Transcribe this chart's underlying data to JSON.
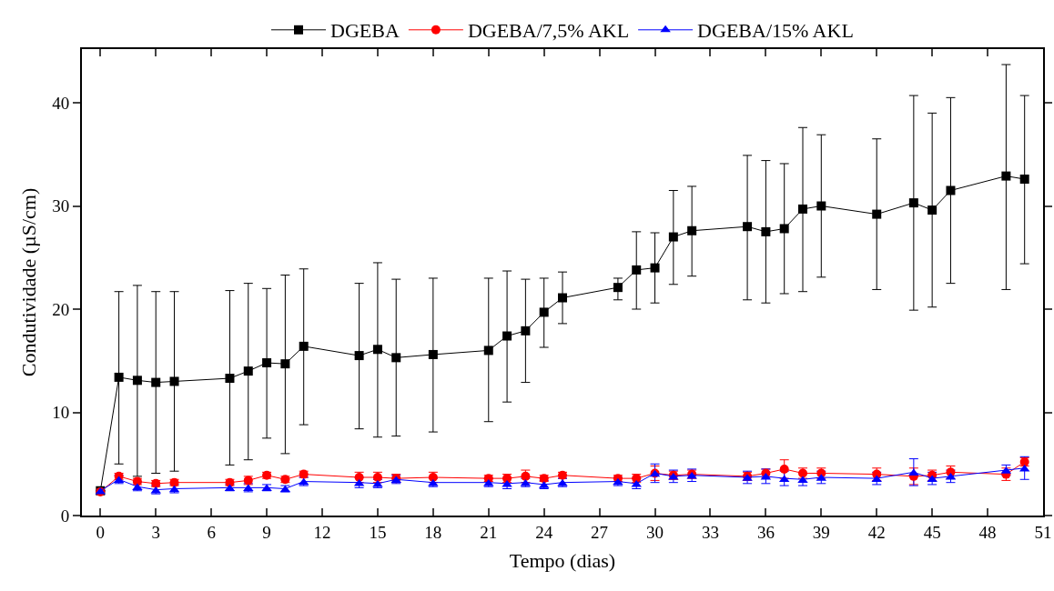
{
  "chart_data": {
    "type": "line",
    "xlabel": "Tempo (dias)",
    "ylabel": "Condutividade (µS/cm)",
    "x": [
      0,
      1,
      2,
      3,
      4,
      7,
      8,
      9,
      10,
      11,
      14,
      15,
      16,
      18,
      21,
      22,
      23,
      24,
      25,
      28,
      29,
      30,
      31,
      32,
      35,
      36,
      37,
      38,
      39,
      42,
      44,
      45,
      46,
      49,
      50
    ],
    "xlim": [
      -1,
      51
    ],
    "xticks": [
      0,
      3,
      6,
      9,
      12,
      15,
      18,
      21,
      24,
      27,
      30,
      33,
      36,
      39,
      42,
      45,
      48,
      51
    ],
    "ylim": [
      0,
      45.2
    ],
    "yticks": [
      0,
      10,
      20,
      30,
      40
    ],
    "grid": false,
    "legend": "top",
    "line_style": "solid",
    "series": [
      {
        "name": "DGEBA",
        "color": "#000000",
        "marker": "square",
        "values": [
          2.4,
          13.4,
          13.1,
          12.9,
          13.0,
          13.3,
          14.0,
          14.8,
          14.7,
          16.4,
          15.5,
          16.1,
          15.3,
          15.6,
          16.0,
          17.4,
          17.9,
          19.7,
          21.1,
          22.1,
          23.8,
          24.0,
          27.0,
          27.6,
          28.0,
          27.5,
          27.8,
          29.7,
          30.0,
          29.2,
          30.3,
          29.6,
          31.5,
          32.9,
          32.6
        ],
        "errors": [
          null,
          [
            5.0,
            21.7
          ],
          [
            3.8,
            22.3
          ],
          [
            4.1,
            21.7
          ],
          [
            4.3,
            21.7
          ],
          [
            4.9,
            21.8
          ],
          [
            5.4,
            22.5
          ],
          [
            7.5,
            22.0
          ],
          [
            6.0,
            23.3
          ],
          [
            8.8,
            23.9
          ],
          [
            8.4,
            22.5
          ],
          [
            7.6,
            24.5
          ],
          [
            7.7,
            22.9
          ],
          [
            8.1,
            23.0
          ],
          [
            9.1,
            23.0
          ],
          [
            11.0,
            23.7
          ],
          [
            12.9,
            22.9
          ],
          [
            16.3,
            23.0
          ],
          [
            18.6,
            23.6
          ],
          [
            20.9,
            23.0
          ],
          [
            20.0,
            27.5
          ],
          [
            20.6,
            27.4
          ],
          [
            22.4,
            31.5
          ],
          [
            23.2,
            31.9
          ],
          [
            20.9,
            34.9
          ],
          [
            20.6,
            34.4
          ],
          [
            21.5,
            34.1
          ],
          [
            21.7,
            37.6
          ],
          [
            23.1,
            36.9
          ],
          [
            21.9,
            36.5
          ],
          [
            19.9,
            40.7
          ],
          [
            20.2,
            39.0
          ],
          [
            22.5,
            40.5
          ],
          [
            21.9,
            43.7
          ],
          [
            24.4,
            40.7
          ]
        ]
      },
      {
        "name": "DGEBA/7,5% AKL",
        "color": "#ff0000",
        "marker": "circle",
        "values": [
          2.3,
          3.8,
          3.3,
          3.1,
          3.2,
          3.2,
          3.4,
          3.9,
          3.5,
          4.0,
          3.7,
          3.7,
          3.6,
          3.7,
          3.6,
          3.6,
          3.8,
          3.6,
          3.9,
          3.6,
          3.6,
          4.1,
          3.9,
          4.0,
          3.8,
          4.1,
          4.5,
          4.1,
          4.1,
          4.0,
          3.8,
          3.9,
          4.2,
          4.0,
          5.2
        ],
        "errors": [
          null,
          0.3,
          0.3,
          0.3,
          0.3,
          0.3,
          0.4,
          0.3,
          0.3,
          0.3,
          0.5,
          0.5,
          0.4,
          0.5,
          0.3,
          0.4,
          0.6,
          0.3,
          0.3,
          0.3,
          0.4,
          0.7,
          0.4,
          0.4,
          0.4,
          0.4,
          0.9,
          0.5,
          0.5,
          0.6,
          0.8,
          0.5,
          0.6,
          0.6,
          0.4
        ]
      },
      {
        "name": "DGEBA/15% AKL",
        "color": "#0000ff",
        "marker": "triangle",
        "values": [
          2.4,
          3.5,
          2.8,
          2.5,
          2.6,
          2.7,
          2.7,
          2.7,
          2.6,
          3.3,
          3.2,
          3.1,
          3.5,
          3.2,
          3.2,
          3.1,
          3.2,
          3.0,
          3.2,
          3.3,
          3.1,
          4.1,
          3.8,
          3.9,
          3.7,
          3.8,
          3.6,
          3.5,
          3.7,
          3.6,
          4.2,
          3.6,
          3.8,
          4.4,
          4.6
        ],
        "errors": [
          null,
          0.4,
          0.4,
          0.4,
          0.4,
          0.3,
          0.4,
          0.3,
          0.3,
          0.4,
          0.5,
          0.4,
          0.4,
          0.4,
          0.4,
          0.5,
          0.4,
          0.4,
          0.4,
          0.4,
          0.5,
          0.9,
          0.6,
          0.6,
          0.6,
          0.7,
          0.7,
          0.6,
          0.6,
          0.6,
          1.3,
          0.6,
          0.6,
          0.5,
          1.1
        ]
      }
    ]
  }
}
